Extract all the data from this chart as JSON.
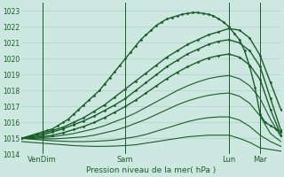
{
  "xlabel": "Pression niveau de la mer( hPa )",
  "bg_color": "#cce8e0",
  "grid_color": "#aaccC4",
  "line_color": "#1a5c2a",
  "ylim": [
    1014,
    1023.5
  ],
  "xlim": [
    0,
    100
  ],
  "yticks": [
    1014,
    1015,
    1016,
    1017,
    1018,
    1019,
    1020,
    1021,
    1022,
    1023
  ],
  "vlines_x": [
    8,
    40,
    80,
    92
  ],
  "xtick_positions": [
    8,
    40,
    80,
    92
  ],
  "xtick_labels": [
    "VenDim",
    "Sam",
    "Lun",
    "Mar"
  ],
  "lines": [
    {
      "x": [
        0,
        2,
        4,
        6,
        8,
        10,
        12,
        14,
        16,
        18,
        20,
        22,
        24,
        26,
        28,
        30,
        32,
        34,
        36,
        38,
        40,
        42,
        44,
        46,
        48,
        50,
        52,
        54,
        56,
        58,
        60,
        62,
        64,
        66,
        68,
        70,
        72,
        74,
        76,
        78,
        80,
        82,
        84,
        86,
        88,
        90,
        92,
        94,
        96,
        98,
        100
      ],
      "y": [
        1015.0,
        1015.1,
        1015.2,
        1015.3,
        1015.4,
        1015.5,
        1015.6,
        1015.8,
        1016.0,
        1016.2,
        1016.5,
        1016.8,
        1017.1,
        1017.4,
        1017.7,
        1018.0,
        1018.4,
        1018.8,
        1019.2,
        1019.6,
        1020.0,
        1020.4,
        1020.8,
        1021.2,
        1021.5,
        1021.8,
        1022.1,
        1022.3,
        1022.5,
        1022.6,
        1022.7,
        1022.8,
        1022.85,
        1022.9,
        1022.9,
        1022.85,
        1022.8,
        1022.7,
        1022.5,
        1022.3,
        1022.0,
        1021.6,
        1021.2,
        1020.5,
        1019.5,
        1018.2,
        1016.5,
        1016.0,
        1015.8,
        1015.6,
        1015.4
      ],
      "style": "dotted_marker",
      "lw": 1.0
    },
    {
      "x": [
        0,
        4,
        8,
        12,
        16,
        20,
        24,
        28,
        32,
        36,
        40,
        44,
        48,
        52,
        56,
        60,
        64,
        68,
        72,
        76,
        80,
        84,
        88,
        92,
        96,
        100
      ],
      "y": [
        1015.0,
        1015.15,
        1015.3,
        1015.5,
        1015.7,
        1016.0,
        1016.3,
        1016.7,
        1017.1,
        1017.6,
        1018.1,
        1018.6,
        1019.1,
        1019.6,
        1020.1,
        1020.5,
        1020.9,
        1021.2,
        1021.5,
        1021.7,
        1021.9,
        1021.8,
        1021.3,
        1020.2,
        1018.5,
        1016.8
      ],
      "style": "dotted_marker",
      "lw": 1.0
    },
    {
      "x": [
        0,
        4,
        8,
        12,
        16,
        20,
        24,
        28,
        32,
        36,
        40,
        44,
        48,
        52,
        56,
        60,
        64,
        68,
        72,
        76,
        80,
        84,
        88,
        92,
        96,
        100
      ],
      "y": [
        1015.0,
        1015.1,
        1015.2,
        1015.4,
        1015.6,
        1015.85,
        1016.1,
        1016.4,
        1016.75,
        1017.1,
        1017.5,
        1018.0,
        1018.5,
        1019.0,
        1019.5,
        1019.9,
        1020.3,
        1020.6,
        1020.9,
        1021.1,
        1021.2,
        1021.0,
        1020.5,
        1019.5,
        1017.5,
        1015.5
      ],
      "style": "dotted_marker",
      "lw": 1.0
    },
    {
      "x": [
        0,
        4,
        8,
        12,
        16,
        20,
        24,
        28,
        32,
        36,
        40,
        44,
        48,
        52,
        56,
        60,
        64,
        68,
        72,
        76,
        80,
        84,
        88,
        92,
        96,
        100
      ],
      "y": [
        1015.0,
        1015.05,
        1015.1,
        1015.2,
        1015.35,
        1015.55,
        1015.75,
        1016.0,
        1016.3,
        1016.65,
        1017.0,
        1017.4,
        1017.85,
        1018.3,
        1018.75,
        1019.15,
        1019.5,
        1019.8,
        1020.05,
        1020.2,
        1020.3,
        1020.1,
        1019.6,
        1018.7,
        1016.8,
        1015.2
      ],
      "style": "dotted_marker",
      "lw": 1.0
    },
    {
      "x": [
        0,
        4,
        8,
        12,
        16,
        20,
        24,
        28,
        32,
        36,
        40,
        44,
        48,
        52,
        56,
        60,
        64,
        68,
        72,
        76,
        80,
        84,
        88,
        92,
        96,
        100
      ],
      "y": [
        1015.0,
        1015.0,
        1015.05,
        1015.1,
        1015.2,
        1015.3,
        1015.45,
        1015.6,
        1015.8,
        1016.05,
        1016.3,
        1016.6,
        1016.95,
        1017.3,
        1017.65,
        1018.0,
        1018.3,
        1018.55,
        1018.75,
        1018.88,
        1018.95,
        1018.75,
        1018.3,
        1017.5,
        1016.2,
        1015.1
      ],
      "style": "solid",
      "lw": 0.8
    },
    {
      "x": [
        0,
        4,
        8,
        12,
        16,
        20,
        24,
        28,
        32,
        36,
        40,
        44,
        48,
        52,
        56,
        60,
        64,
        68,
        72,
        76,
        80,
        84,
        88,
        92,
        96,
        100
      ],
      "y": [
        1015.0,
        1014.98,
        1014.97,
        1014.97,
        1015.0,
        1015.05,
        1015.1,
        1015.2,
        1015.35,
        1015.5,
        1015.7,
        1015.95,
        1016.2,
        1016.5,
        1016.8,
        1017.1,
        1017.35,
        1017.55,
        1017.7,
        1017.8,
        1017.85,
        1017.65,
        1017.2,
        1016.4,
        1015.3,
        1014.8
      ],
      "style": "solid",
      "lw": 0.8
    },
    {
      "x": [
        0,
        4,
        8,
        12,
        16,
        20,
        24,
        28,
        32,
        36,
        40,
        44,
        48,
        52,
        56,
        60,
        64,
        68,
        72,
        76,
        80,
        84,
        88,
        92,
        96,
        100
      ],
      "y": [
        1015.0,
        1014.95,
        1014.9,
        1014.85,
        1014.82,
        1014.8,
        1014.8,
        1014.82,
        1014.85,
        1014.9,
        1015.0,
        1015.1,
        1015.25,
        1015.45,
        1015.65,
        1015.85,
        1016.05,
        1016.2,
        1016.3,
        1016.35,
        1016.35,
        1016.15,
        1015.75,
        1015.2,
        1014.8,
        1014.5
      ],
      "style": "solid",
      "lw": 0.8
    },
    {
      "x": [
        0,
        4,
        8,
        12,
        16,
        20,
        24,
        28,
        32,
        36,
        40,
        44,
        48,
        52,
        56,
        60,
        64,
        68,
        72,
        76,
        80,
        84,
        88,
        92,
        96,
        100
      ],
      "y": [
        1014.8,
        1014.75,
        1014.7,
        1014.65,
        1014.6,
        1014.55,
        1014.52,
        1014.5,
        1014.5,
        1014.52,
        1014.55,
        1014.6,
        1014.7,
        1014.8,
        1014.9,
        1015.0,
        1015.1,
        1015.15,
        1015.2,
        1015.2,
        1015.2,
        1015.0,
        1014.75,
        1014.4,
        1014.3,
        1014.2
      ],
      "style": "solid",
      "lw": 0.8
    }
  ]
}
